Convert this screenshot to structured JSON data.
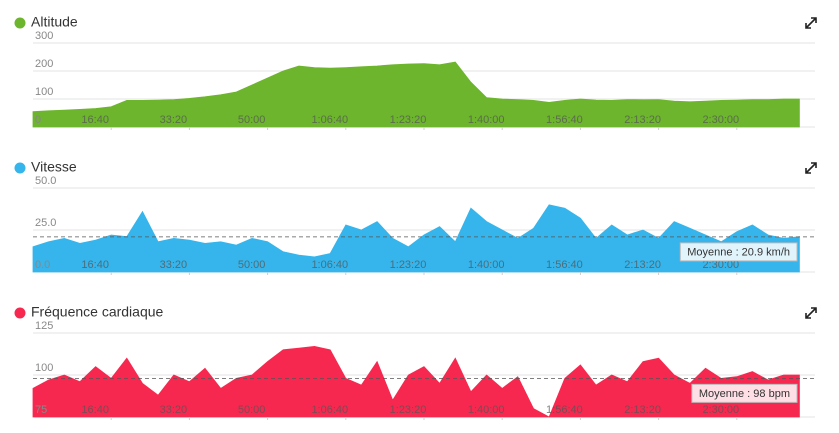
{
  "chart_data": [
    {
      "type": "area",
      "title": "Altitude",
      "color": "#6cb52d",
      "x": [
        0,
        200,
        400,
        600,
        800,
        1000,
        1200,
        1400,
        1600,
        1800,
        2000,
        2200,
        2400,
        2600,
        2800,
        3000,
        3200,
        3400,
        3600,
        3800,
        4000,
        4200,
        4400,
        4600,
        4800,
        5000,
        5200,
        5400,
        5600,
        5800,
        6000,
        6200,
        6400,
        6600,
        6800,
        7000,
        7200,
        7400,
        7600,
        7800,
        8000,
        8200,
        8400,
        8600,
        8800,
        9000,
        9200,
        9400,
        9600,
        9800
      ],
      "values": [
        55,
        58,
        60,
        63,
        66,
        72,
        95,
        95,
        96,
        98,
        102,
        108,
        115,
        125,
        150,
        175,
        200,
        218,
        212,
        210,
        212,
        215,
        218,
        222,
        225,
        226,
        222,
        232,
        160,
        105,
        100,
        98,
        95,
        88,
        95,
        100,
        96,
        95,
        98,
        97,
        98,
        92,
        90,
        92,
        95,
        96,
        98,
        98,
        100,
        100
      ],
      "xlim": [
        0,
        10000
      ],
      "xticks": [
        {
          "value": 1000,
          "label": "16:40"
        },
        {
          "value": 2000,
          "label": "33:20"
        },
        {
          "value": 3000,
          "label": "50:00"
        },
        {
          "value": 4000,
          "label": "1:06:40"
        },
        {
          "value": 5000,
          "label": "1:23:20"
        },
        {
          "value": 6000,
          "label": "1:40:00"
        },
        {
          "value": 7000,
          "label": "1:56:40"
        },
        {
          "value": 8000,
          "label": "2:13:20"
        },
        {
          "value": 9000,
          "label": "2:30:00"
        }
      ],
      "ylim": [
        0,
        300
      ],
      "yticks": [
        0,
        100,
        200,
        300
      ],
      "grid": true
    },
    {
      "type": "area",
      "title": "Vitesse",
      "color": "#35b5ec",
      "x": [
        0,
        200,
        400,
        600,
        800,
        1000,
        1200,
        1400,
        1600,
        1800,
        2000,
        2200,
        2400,
        2600,
        2800,
        3000,
        3200,
        3400,
        3600,
        3800,
        4000,
        4200,
        4400,
        4600,
        4800,
        5000,
        5200,
        5400,
        5600,
        5800,
        6000,
        6200,
        6400,
        6600,
        6800,
        7000,
        7200,
        7400,
        7600,
        7800,
        8000,
        8200,
        8400,
        8600,
        8800,
        9000,
        9200,
        9400,
        9600,
        9800
      ],
      "values": [
        15,
        18,
        20,
        17,
        19,
        22,
        21,
        36,
        18,
        20,
        19,
        17,
        18,
        16,
        20,
        18,
        12,
        10,
        9,
        11,
        28,
        25,
        30,
        20,
        15,
        22,
        27,
        18,
        38,
        30,
        25,
        20,
        26,
        40,
        38,
        32,
        20,
        28,
        22,
        25,
        20,
        30,
        26,
        22,
        18,
        24,
        28,
        22,
        20,
        21
      ],
      "xlim": [
        0,
        10000
      ],
      "xticks": [
        {
          "value": 1000,
          "label": "16:40"
        },
        {
          "value": 2000,
          "label": "33:20"
        },
        {
          "value": 3000,
          "label": "50:00"
        },
        {
          "value": 4000,
          "label": "1:06:40"
        },
        {
          "value": 5000,
          "label": "1:23:20"
        },
        {
          "value": 6000,
          "label": "1:40:00"
        },
        {
          "value": 7000,
          "label": "1:56:40"
        },
        {
          "value": 8000,
          "label": "2:13:20"
        },
        {
          "value": 9000,
          "label": "2:30:00"
        }
      ],
      "ylim": [
        0,
        50
      ],
      "yticks": [
        {
          "value": 0,
          "label": "0.0"
        },
        {
          "value": 25,
          "label": "25.0"
        },
        {
          "value": 50,
          "label": "50.0"
        }
      ],
      "grid": true,
      "average": {
        "value": 20.9,
        "label": "Moyenne : 20.9 km/h"
      }
    },
    {
      "type": "area",
      "title": "Fréquence cardiaque",
      "color": "#f7284f",
      "x": [
        0,
        200,
        400,
        600,
        800,
        1000,
        1200,
        1400,
        1600,
        1800,
        2000,
        2200,
        2400,
        2600,
        2800,
        3000,
        3200,
        3400,
        3600,
        3800,
        4000,
        4200,
        4400,
        4600,
        4800,
        5000,
        5200,
        5400,
        5600,
        5800,
        6000,
        6200,
        6400,
        6600,
        6800,
        7000,
        7200,
        7400,
        7600,
        7800,
        8000,
        8200,
        8400,
        8600,
        8800,
        9000,
        9200,
        9400,
        9600,
        9800
      ],
      "values": [
        92,
        97,
        100,
        96,
        105,
        98,
        110,
        95,
        88,
        100,
        96,
        104,
        92,
        98,
        100,
        108,
        115,
        116,
        117,
        115,
        98,
        94,
        108,
        85,
        100,
        105,
        95,
        110,
        90,
        100,
        92,
        99,
        80,
        75,
        98,
        106,
        94,
        100,
        96,
        108,
        110,
        100,
        95,
        104,
        98,
        99,
        102,
        97,
        100,
        100
      ],
      "xlim": [
        0,
        10000
      ],
      "xticks": [
        {
          "value": 1000,
          "label": "16:40"
        },
        {
          "value": 2000,
          "label": "33:20"
        },
        {
          "value": 3000,
          "label": "50:00"
        },
        {
          "value": 4000,
          "label": "1:06:40"
        },
        {
          "value": 5000,
          "label": "1:23:20"
        },
        {
          "value": 6000,
          "label": "1:40:00"
        },
        {
          "value": 7000,
          "label": "1:56:40"
        },
        {
          "value": 8000,
          "label": "2:13:20"
        },
        {
          "value": 9000,
          "label": "2:30:00"
        }
      ],
      "ylim": [
        75,
        125
      ],
      "yticks": [
        75,
        100,
        125
      ],
      "grid": true,
      "average": {
        "value": 98,
        "label": "Moyenne : 98 bpm"
      }
    }
  ]
}
